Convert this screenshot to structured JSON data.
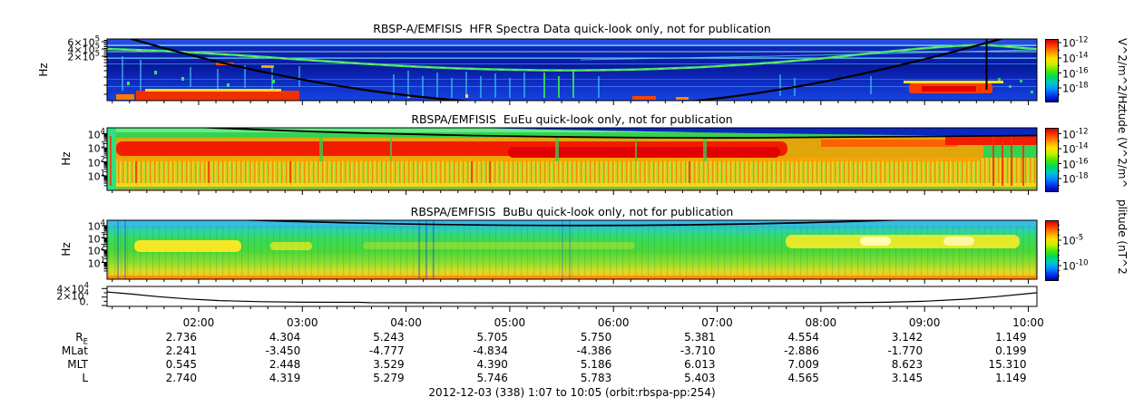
{
  "caption": "2012-12-03 (338) 1:07 to 10:05 (orbit:rbspa-pp:254)",
  "colors": {
    "background": "#ffffff",
    "frame": "#000000",
    "colorbar_stops": [
      "#d40000",
      "#ff3c00",
      "#ff9400",
      "#ffe100",
      "#c8f000",
      "#50e800",
      "#00d860",
      "#00c8c8",
      "#0090ff",
      "#0038f0",
      "#0000a0"
    ]
  },
  "time_axis": {
    "start_label": "1:07",
    "end_label": "10:05"
  },
  "chart_data": [
    {
      "type": "heatmap",
      "id": "hfr-spectrogram",
      "title": "RBSP-A/EMFISIS  HFR Spectra Data quick-look only, not for publication",
      "ylabel": "Hz",
      "ytick_labels": [
        "6×10^5",
        "4×10^5",
        "2×10^5"
      ],
      "colorbar": {
        "scale": "log",
        "tick_labels": [
          "10^-12",
          "10^-14",
          "10^-16",
          "10^-18"
        ],
        "unit_label": "V^2/m^2/Hz"
      },
      "overlays": [
        "black fce curve high at both orbit ends, dipping below panel mid-orbit",
        "vertical black marker line near 09:35"
      ],
      "visual_summary": "dark blue background with narrowband horizontal interference lines, a green upper-hybrid band drifting down then up, red-orange broadband bursts near perigee at start and end"
    },
    {
      "type": "heatmap",
      "id": "eueu-spectrogram",
      "title": "RBSPA/EMFISIS  EuEu quick-look only, not for publication",
      "ylabel": "Hz",
      "ytick_labels": [
        "10^4",
        "10^3",
        "10^2",
        "10^1"
      ],
      "colorbar": {
        "scale": "log",
        "tick_labels": [
          "10^-12",
          "10^-14",
          "10^-16",
          "10^-18"
        ],
        "unit_label": "tude (V^2/m^"
      },
      "overlays": [
        "black fce-related curve descending from top-left then running nearly flat"
      ],
      "visual_summary": "intense green/yellow background, broad red band across mid frequencies, vertically striated yellow-red band at low frequencies, dark blue wedge under black line at top right"
    },
    {
      "type": "heatmap",
      "id": "bubu-spectrogram",
      "title": "RBSPA/EMFISIS  BuBu quick-look only, not for publication",
      "ylabel": "Hz",
      "ytick_labels": [
        "10^4",
        "10^3",
        "10^2",
        "10^1"
      ],
      "colorbar": {
        "scale": "log",
        "tick_labels": [
          "10^-5",
          "10^-10"
        ],
        "unit_label": "plitude (nT^2"
      },
      "overlays": [
        "black shallow arc entering and exiting the panel top mid-orbit"
      ],
      "visual_summary": "cyan-blue at top grading through green to yellow and orange at bottom, bright yellow patches near 100-300 Hz at start and from 08:00 to 09:45"
    },
    {
      "type": "line",
      "id": "orbit-parameter-line",
      "ytick_labels": [
        "4×10^4",
        "2×10^4",
        "0."
      ],
      "ylim": [
        0,
        45000
      ],
      "x_hours": [
        1.12,
        1.35,
        1.6,
        1.9,
        2.2,
        2.6,
        3.0,
        3.55,
        3.65,
        4.0,
        5.0,
        6.0,
        7.0,
        8.0,
        8.6,
        9.0,
        9.4,
        9.7,
        10.0,
        10.08
      ],
      "values": [
        32000,
        27000,
        21000,
        15500,
        11500,
        9000,
        7800,
        7400,
        6600,
        6400,
        6200,
        6000,
        5900,
        6200,
        7500,
        10000,
        15000,
        21000,
        28000,
        30000
      ]
    },
    {
      "type": "table",
      "id": "ephemeris-table",
      "columns": [
        "02:00",
        "03:00",
        "04:00",
        "05:00",
        "06:00",
        "07:00",
        "08:00",
        "09:00",
        "10:00"
      ],
      "rows": [
        {
          "label": "R",
          "sub": "E",
          "values": [
            "2.736",
            "4.304",
            "5.243",
            "5.705",
            "5.750",
            "5.381",
            "4.554",
            "3.142",
            "1.149"
          ]
        },
        {
          "label": "MLat",
          "values": [
            "2.241",
            "-3.450",
            "-4.777",
            "-4.834",
            "-4.386",
            "-3.710",
            "-2.886",
            "-1.770",
            "0.199"
          ]
        },
        {
          "label": "MLT",
          "values": [
            "0.545",
            "2.448",
            "3.529",
            "4.390",
            "5.186",
            "6.013",
            "7.009",
            "8.623",
            "15.310"
          ]
        },
        {
          "label": "L",
          "values": [
            "2.740",
            "4.319",
            "5.279",
            "5.746",
            "5.783",
            "5.403",
            "4.565",
            "3.145",
            "1.149"
          ]
        }
      ]
    }
  ]
}
